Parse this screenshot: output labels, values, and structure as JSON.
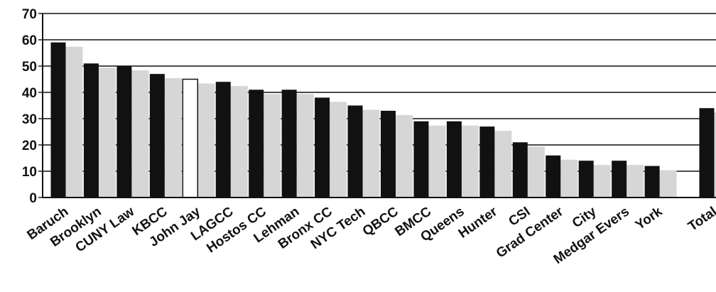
{
  "chart_data": {
    "type": "bar",
    "title": "",
    "xlabel": "",
    "ylabel": "",
    "ylim": [
      0,
      70
    ],
    "yticks": [
      0,
      10,
      20,
      30,
      40,
      50,
      60,
      70
    ],
    "grid": true,
    "categories": [
      "Baruch",
      "Brooklyn",
      "CUNY Law",
      "KBCC",
      "John Jay",
      "LAGCC",
      "Hostos CC",
      "Lehman",
      "Bronx CC",
      "NYC Tech",
      "QBCC",
      "BMCC",
      "Queens",
      "Hunter",
      "CSI",
      "Grad Center",
      "City",
      "Medgar Evers",
      "York",
      "Total"
    ],
    "values": [
      59,
      51,
      50,
      47,
      45,
      44,
      41,
      41,
      38,
      35,
      33,
      29,
      29,
      27,
      21,
      16,
      14,
      14,
      12,
      34
    ],
    "highlight_category": "John Jay",
    "colors": {
      "bar": "#111111",
      "highlight_bar": "#ffffff",
      "shadow": "#d6d6d6",
      "grid": "#111111",
      "text": "#111111"
    }
  }
}
